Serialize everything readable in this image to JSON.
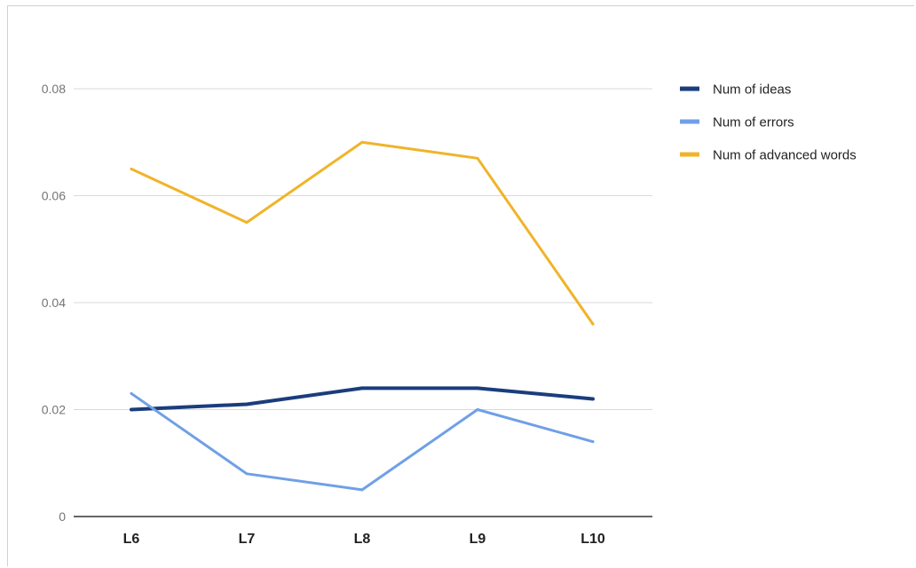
{
  "chart_data": {
    "type": "line",
    "categories": [
      "L6",
      "L7",
      "L8",
      "L9",
      "L10"
    ],
    "series": [
      {
        "name": "Num of ideas",
        "color": "#1a3d7c",
        "values": [
          0.02,
          0.021,
          0.024,
          0.024,
          0.022
        ]
      },
      {
        "name": "Num of errors",
        "color": "#6fa0e6",
        "values": [
          0.023,
          0.008,
          0.005,
          0.02,
          0.014
        ]
      },
      {
        "name": "Num of advanced words",
        "color": "#f0b429",
        "values": [
          0.065,
          0.055,
          0.07,
          0.067,
          0.036
        ]
      }
    ],
    "yticks": [
      {
        "value": 0,
        "label": "0"
      },
      {
        "value": 0.02,
        "label": "0.02"
      },
      {
        "value": 0.04,
        "label": "0.04"
      },
      {
        "value": 0.06,
        "label": "0.06"
      },
      {
        "value": 0.08,
        "label": "0.08"
      }
    ],
    "ylim": [
      0,
      0.08
    ],
    "grid": true,
    "legend_position": "right"
  }
}
